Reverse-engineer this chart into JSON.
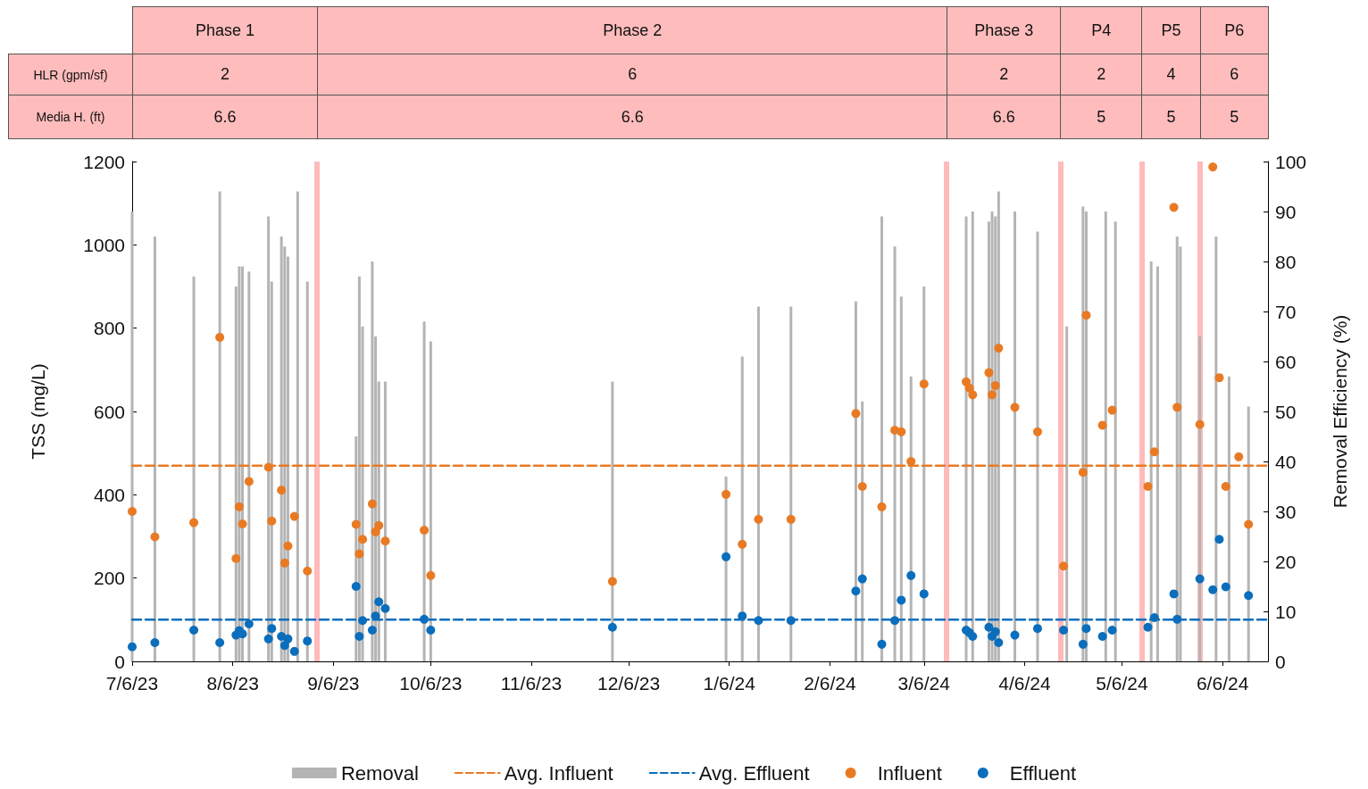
{
  "chart_data": {
    "type": "scatter",
    "ylabel": "TSS (mg/L)",
    "y2label": "Removal Efficiency (%)",
    "annotations": [
      "Phase 1",
      "Phase 2",
      "Phase 3",
      "P4",
      "P5",
      "P6",
      "HLR (gpm/sf)",
      "2",
      "6",
      "2",
      "2",
      "4",
      "6",
      "Media H. (ft)",
      "6.6",
      "6.6",
      "6.6",
      "5",
      "5",
      "5"
    ],
    "xlim": [
      "2023-07-06",
      "2024-06-20"
    ],
    "xticks": [
      {
        "value": "2023-07-06",
        "label": "7/6/23"
      },
      {
        "value": "2023-08-06",
        "label": "8/6/23"
      },
      {
        "value": "2023-09-06",
        "label": "9/6/23"
      },
      {
        "value": "2023-10-06",
        "label": "10/6/23"
      },
      {
        "value": "2023-11-06",
        "label": "11/6/23"
      },
      {
        "value": "2023-12-06",
        "label": "12/6/23"
      },
      {
        "value": "2024-01-06",
        "label": "1/6/24"
      },
      {
        "value": "2024-02-06",
        "label": "2/6/24"
      },
      {
        "value": "2024-03-06",
        "label": "3/6/24"
      },
      {
        "value": "2024-04-06",
        "label": "4/6/24"
      },
      {
        "value": "2024-05-06",
        "label": "5/6/24"
      },
      {
        "value": "2024-06-06",
        "label": "6/6/24"
      }
    ],
    "ylim": [
      0,
      1200
    ],
    "yticks": [
      0,
      200,
      400,
      600,
      800,
      1000,
      1200
    ],
    "y2lim": [
      0,
      100
    ],
    "y2ticks": [
      0,
      10,
      20,
      30,
      40,
      50,
      60,
      70,
      80,
      90,
      100
    ],
    "grid": false,
    "legend": "bottom",
    "marker": "circle",
    "ref_lines": [
      {
        "axis": "x",
        "value": "2023-09-01",
        "color": "#ffb6b6"
      },
      {
        "axis": "x",
        "value": "2024-03-13",
        "color": "#ffb6b6"
      },
      {
        "axis": "x",
        "value": "2024-04-17",
        "color": "#ffb6b6"
      },
      {
        "axis": "x",
        "value": "2024-05-12",
        "color": "#ffb6b6"
      },
      {
        "axis": "x",
        "value": "2024-05-30",
        "color": "#ffb6b6"
      }
    ],
    "series": [
      {
        "name": "Removal",
        "type": "bar",
        "axis": "y2",
        "color": "#b4b4b4",
        "x": [
          "2023-07-06",
          "2023-07-13",
          "2023-07-25",
          "2023-08-02",
          "2023-08-07",
          "2023-08-08",
          "2023-08-09",
          "2023-08-11",
          "2023-08-17",
          "2023-08-18",
          "2023-08-21",
          "2023-08-22",
          "2023-08-23",
          "2023-08-26",
          "2023-08-29",
          "2023-09-13",
          "2023-09-14",
          "2023-09-15",
          "2023-09-18",
          "2023-09-19",
          "2023-09-20",
          "2023-09-22",
          "2023-10-04",
          "2023-10-06",
          "2023-12-01",
          "2024-01-05",
          "2024-01-10",
          "2024-01-15",
          "2024-01-25",
          "2024-02-14",
          "2024-02-16",
          "2024-02-22",
          "2024-02-26",
          "2024-02-28",
          "2024-03-02",
          "2024-03-06",
          "2024-03-19",
          "2024-03-21",
          "2024-03-26",
          "2024-03-27",
          "2024-03-28",
          "2024-03-29",
          "2024-04-03",
          "2024-04-10",
          "2024-04-19",
          "2024-04-24",
          "2024-04-25",
          "2024-05-01",
          "2024-05-04",
          "2024-05-15",
          "2024-05-17",
          "2024-05-23",
          "2024-05-24",
          "2024-05-30",
          "2024-06-04",
          "2024-06-08",
          "2024-06-14"
        ],
        "values": [
          90,
          85,
          77,
          94,
          75,
          79,
          79,
          78,
          89,
          76,
          85,
          83,
          81,
          94,
          76,
          45,
          77,
          67,
          80,
          65,
          56,
          56,
          68,
          64,
          56,
          37,
          61,
          71,
          71,
          72,
          52,
          89,
          83,
          73,
          57,
          75,
          89,
          90,
          88,
          90,
          89,
          94,
          90,
          86,
          67,
          91,
          90,
          90,
          88,
          80,
          79,
          85,
          83,
          65,
          85,
          57,
          51
        ]
      },
      {
        "name": "Avg. Influent",
        "type": "line",
        "line_style": "dashed",
        "marker": "none",
        "color": "#e97a24",
        "x": [
          "2023-07-06",
          "2024-06-20"
        ],
        "values": [
          470,
          470
        ]
      },
      {
        "name": "Avg. Effluent",
        "type": "line",
        "line_style": "dashed",
        "marker": "none",
        "color": "#0a6ebd",
        "x": [
          "2023-07-06",
          "2024-06-20"
        ],
        "values": [
          100,
          100
        ]
      },
      {
        "name": "Influent",
        "color": "#e97a24",
        "x": [
          "2023-07-06",
          "2023-07-13",
          "2023-07-25",
          "2023-08-02",
          "2023-08-07",
          "2023-08-08",
          "2023-08-09",
          "2023-08-11",
          "2023-08-17",
          "2023-08-18",
          "2023-08-21",
          "2023-08-22",
          "2023-08-23",
          "2023-08-25",
          "2023-08-29",
          "2023-09-13",
          "2023-09-14",
          "2023-09-15",
          "2023-09-18",
          "2023-09-19",
          "2023-09-20",
          "2023-09-22",
          "2023-10-04",
          "2023-10-06",
          "2023-12-01",
          "2024-01-05",
          "2024-01-10",
          "2024-01-15",
          "2024-01-25",
          "2024-02-14",
          "2024-02-16",
          "2024-02-22",
          "2024-02-26",
          "2024-02-28",
          "2024-03-02",
          "2024-03-06",
          "2024-03-19",
          "2024-03-20",
          "2024-03-21",
          "2024-03-26",
          "2024-03-27",
          "2024-03-28",
          "2024-03-29",
          "2024-04-03",
          "2024-04-10",
          "2024-04-18",
          "2024-04-24",
          "2024-04-25",
          "2024-04-30",
          "2024-05-03",
          "2024-05-14",
          "2024-05-16",
          "2024-05-22",
          "2024-05-23",
          "2024-05-30",
          "2024-06-03",
          "2024-06-05",
          "2024-06-07",
          "2024-06-11",
          "2024-06-14"
        ],
        "values": [
          360,
          299,
          333,
          778,
          247,
          371,
          330,
          432,
          466,
          337,
          411,
          236,
          277,
          348,
          217,
          329,
          258,
          293,
          378,
          311,
          326,
          289,
          315,
          206,
          192,
          401,
          281,
          341,
          341,
          595,
          420,
          371,
          555,
          551,
          480,
          666,
          671,
          656,
          640,
          693,
          640,
          662,
          752,
          610,
          551,
          229,
          454,
          831,
          567,
          603,
          420,
          503,
          1090,
          610,
          569,
          1187,
          681,
          420,
          491,
          329
        ]
      },
      {
        "name": "Effluent",
        "color": "#0a6ebd",
        "x": [
          "2023-07-06",
          "2023-07-13",
          "2023-07-25",
          "2023-08-02",
          "2023-08-07",
          "2023-08-08",
          "2023-08-09",
          "2023-08-11",
          "2023-08-17",
          "2023-08-18",
          "2023-08-21",
          "2023-08-22",
          "2023-08-23",
          "2023-08-25",
          "2023-08-29",
          "2023-09-13",
          "2023-09-14",
          "2023-09-15",
          "2023-09-18",
          "2023-09-19",
          "2023-09-20",
          "2023-09-22",
          "2023-10-04",
          "2023-10-06",
          "2023-12-01",
          "2024-01-05",
          "2024-01-10",
          "2024-01-15",
          "2024-01-25",
          "2024-02-14",
          "2024-02-16",
          "2024-02-22",
          "2024-02-26",
          "2024-02-28",
          "2024-03-02",
          "2024-03-06",
          "2024-03-19",
          "2024-03-20",
          "2024-03-21",
          "2024-03-26",
          "2024-03-27",
          "2024-03-28",
          "2024-03-29",
          "2024-04-03",
          "2024-04-10",
          "2024-04-18",
          "2024-04-24",
          "2024-04-25",
          "2024-04-30",
          "2024-05-03",
          "2024-05-14",
          "2024-05-16",
          "2024-05-22",
          "2024-05-23",
          "2024-05-30",
          "2024-06-03",
          "2024-06-05",
          "2024-06-07",
          "2024-06-14"
        ],
        "values": [
          35,
          45,
          75,
          45,
          63,
          74,
          66,
          90,
          54,
          79,
          60,
          38,
          54,
          24,
          49,
          180,
          60,
          98,
          75,
          109,
          143,
          127,
          101,
          75,
          82,
          251,
          109,
          98,
          98,
          169,
          198,
          41,
          98,
          147,
          206,
          162,
          75,
          69,
          60,
          82,
          60,
          71,
          45,
          63,
          79,
          75,
          41,
          79,
          60,
          75,
          82,
          105,
          162,
          101,
          198,
          172,
          293,
          179,
          158
        ]
      }
    ]
  }
}
